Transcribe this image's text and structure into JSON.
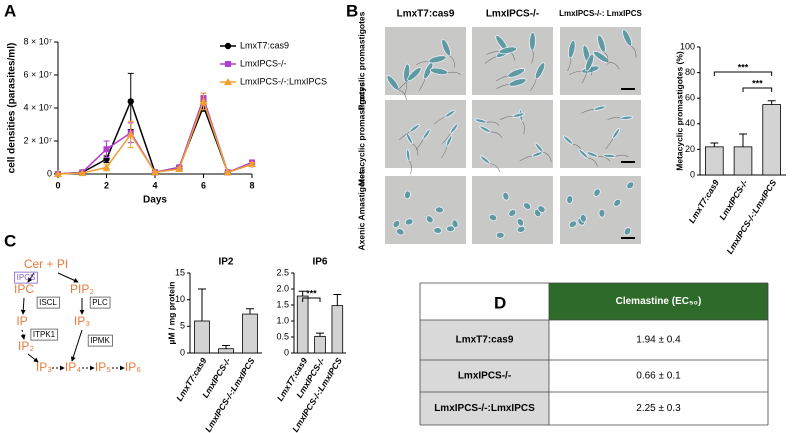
{
  "panel_labels": [
    "A",
    "B",
    "C",
    "D"
  ],
  "chart_data": [
    {
      "type": "line",
      "ylabel": "cell densities (parasites/ml)",
      "xlabel": "Days",
      "x": [
        0,
        1,
        2,
        3,
        4,
        5,
        6,
        7,
        8
      ],
      "xlim": [
        0,
        8
      ],
      "xticks": [
        0,
        2,
        4,
        6,
        8
      ],
      "ylim": [
        0,
        80000000
      ],
      "yticks": [
        0,
        {
          "value": 20000000,
          "label": "2 × 10⁷"
        },
        {
          "value": 40000000,
          "label": "4 × 10⁷"
        },
        {
          "value": 60000000,
          "label": "6 × 10⁷"
        },
        {
          "value": 80000000,
          "label": "8 × 10⁷"
        }
      ],
      "legend": "upper right",
      "series": [
        {
          "name": "LmxT7:cas9",
          "color": "#000000",
          "marker": "circle",
          "values": [
            0,
            1000000,
            9000000,
            44000000,
            1000000,
            4000000,
            41000000,
            1000000,
            6000000
          ],
          "errors": [
            0,
            500000,
            2000000,
            17000000,
            500000,
            1000000,
            3000000,
            500000,
            1000000
          ]
        },
        {
          "name": "LmxIPCS-/-",
          "color": "#b43cd0",
          "marker": "square",
          "values": [
            0,
            1000000,
            15000000,
            25000000,
            1000000,
            4000000,
            46000000,
            1000000,
            7000000
          ],
          "errors": [
            0,
            500000,
            5000000,
            6000000,
            500000,
            1000000,
            3000000,
            500000,
            1000000
          ]
        },
        {
          "name": "LmxIPCS-/-:LmxIPCS",
          "color": "#f0a030",
          "marker": "triangle",
          "values": [
            0,
            500000,
            4000000,
            24000000,
            1000000,
            3000000,
            44000000,
            1000000,
            6000000
          ],
          "errors": [
            0,
            300000,
            2000000,
            8000000,
            500000,
            1000000,
            5000000,
            500000,
            1000000
          ]
        }
      ]
    },
    {
      "type": "bar",
      "ylabel": "Metacyclic promastigotes (%)",
      "categories": [
        "LmxT7:cas9",
        "LmxIPCS-/-",
        "LmxIPCS-/-:LmxIPCS"
      ],
      "values": [
        22,
        22,
        55
      ],
      "errors": [
        3,
        10,
        3
      ],
      "color": "#d3d3d3",
      "ylim": [
        0,
        100
      ],
      "yticks": [
        0,
        20,
        40,
        60,
        80,
        100
      ],
      "significance": [
        "***",
        "***"
      ]
    },
    {
      "type": "bar",
      "title": "IP2",
      "ylabel": "µM / mg protein",
      "categories": [
        "LmxT7:cas9",
        "LmxIPCS-/-",
        "LmxIPCS-/-:LmxIPCS"
      ],
      "values": [
        6,
        0.8,
        7.3
      ],
      "errors": [
        6,
        0.6,
        1
      ],
      "color": "#d3d3d3",
      "ylim": [
        0,
        15
      ],
      "yticks": [
        0,
        5,
        10,
        15
      ]
    },
    {
      "type": "bar",
      "title": "IP6",
      "categories": [
        "LmxT7:cas9",
        "LmxIPCS-/-",
        "LmxIPCS-/-:LmxIPCS"
      ],
      "values": [
        1.78,
        0.52,
        1.48
      ],
      "errors": [
        0.15,
        0.1,
        0.35
      ],
      "color": "#d3d3d3",
      "ylim": [
        0,
        2.5
      ],
      "yticks": [
        0,
        0.5,
        {
          "value": 1,
          "label": "1.0"
        },
        1.5,
        {
          "value": 2,
          "label": "2.0"
        },
        2.5
      ],
      "significance": [
        "***"
      ]
    }
  ],
  "micrographs": {
    "columns": [
      "LmxT7:cas9",
      "LmxIPCS-/-",
      "LmxIPCS-/-: LmxIPCS"
    ],
    "rows": [
      "Procyclic promastigotes",
      "Metacyclic promastigotes",
      "Axenic Amastigotes"
    ]
  },
  "pathway": {
    "metabolites": [
      "Cer + PI",
      "IPC",
      "PIP₂",
      "IP",
      "IP₃",
      "IP₂",
      "IP₃",
      "IP₄",
      "IP₅",
      "IP₆"
    ],
    "enzymes": [
      "IPCS",
      "ISCL",
      "PLC",
      "ITPK1",
      "IPMK"
    ]
  },
  "table": {
    "header": "Clemastine (EC₅₀)",
    "rows": [
      [
        "LmxT7:cas9",
        "1.94 ± 0.4"
      ],
      [
        "LmxIPCS-/-",
        "0.66 ± 0.1"
      ],
      [
        "LmxIPCS-/-:LmxIPCS",
        "2.25 ± 0.3"
      ]
    ]
  }
}
